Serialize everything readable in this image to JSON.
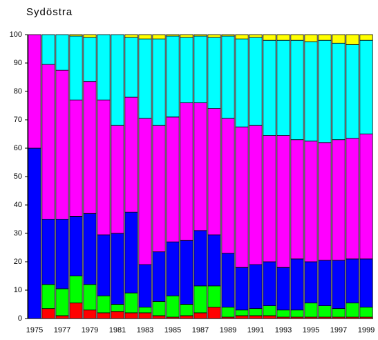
{
  "chart_data": {
    "type": "stacked_bar",
    "title": "Sydöstra",
    "categories": [
      "1975",
      null,
      "1977",
      null,
      "1979",
      null,
      "1981",
      null,
      "1983",
      null,
      "1985",
      null,
      "1987",
      null,
      "1989",
      null,
      "1991",
      null,
      "1993",
      null,
      "1995",
      null,
      "1997",
      null,
      "1999"
    ],
    "series": [
      {
        "color": "#ff0000",
        "values": [
          0,
          3.5,
          1,
          5.5,
          3,
          2,
          2.5,
          2,
          2,
          1,
          0.5,
          1,
          2,
          4,
          0.5,
          1,
          1,
          1,
          0.5,
          0.5,
          0.5,
          0.5,
          0.5,
          0.5,
          0.5
        ]
      },
      {
        "color": "#00ff00",
        "values": [
          0,
          8.5,
          9.5,
          9.5,
          9,
          6,
          2.5,
          7,
          2,
          5,
          7.5,
          4,
          9.5,
          7.5,
          3.5,
          2,
          2.5,
          3.5,
          2.5,
          2.5,
          5,
          4,
          3,
          5,
          3.5
        ]
      },
      {
        "color": "#0000ff",
        "values": [
          60,
          23,
          24.5,
          21,
          25,
          21.5,
          25,
          28.5,
          15,
          17.5,
          19,
          22.5,
          19.5,
          18,
          19,
          15,
          15.5,
          15.5,
          15,
          18,
          14.5,
          16,
          17,
          15.5,
          17
        ]
      },
      {
        "color": "#ff00ff",
        "values": [
          40,
          54.5,
          52.5,
          41,
          46.5,
          47.5,
          38,
          40.5,
          51.5,
          44.5,
          44,
          48.5,
          45,
          44.5,
          47.5,
          49.5,
          49,
          44.5,
          46.5,
          42,
          42.5,
          41.5,
          42.5,
          42.5,
          44
        ]
      },
      {
        "color": "#00ffff",
        "values": [
          0,
          10.5,
          12.5,
          22.5,
          15.5,
          23,
          32,
          21,
          28,
          30.5,
          28.5,
          23,
          23.5,
          25,
          29,
          31,
          31,
          33.5,
          33.5,
          35,
          35,
          36,
          34,
          33,
          33
        ]
      },
      {
        "color": "#ffff00",
        "values": [
          0,
          0,
          0,
          0.5,
          1,
          0,
          0,
          1,
          1.5,
          1.5,
          0.5,
          1,
          0.5,
          1,
          0.5,
          1.5,
          1,
          2,
          2,
          2,
          2.5,
          2,
          3,
          3.5,
          2
        ]
      }
    ],
    "ylim": [
      0,
      100
    ],
    "yticks": [
      0,
      10,
      20,
      30,
      40,
      50,
      60,
      70,
      80,
      90,
      100
    ]
  }
}
